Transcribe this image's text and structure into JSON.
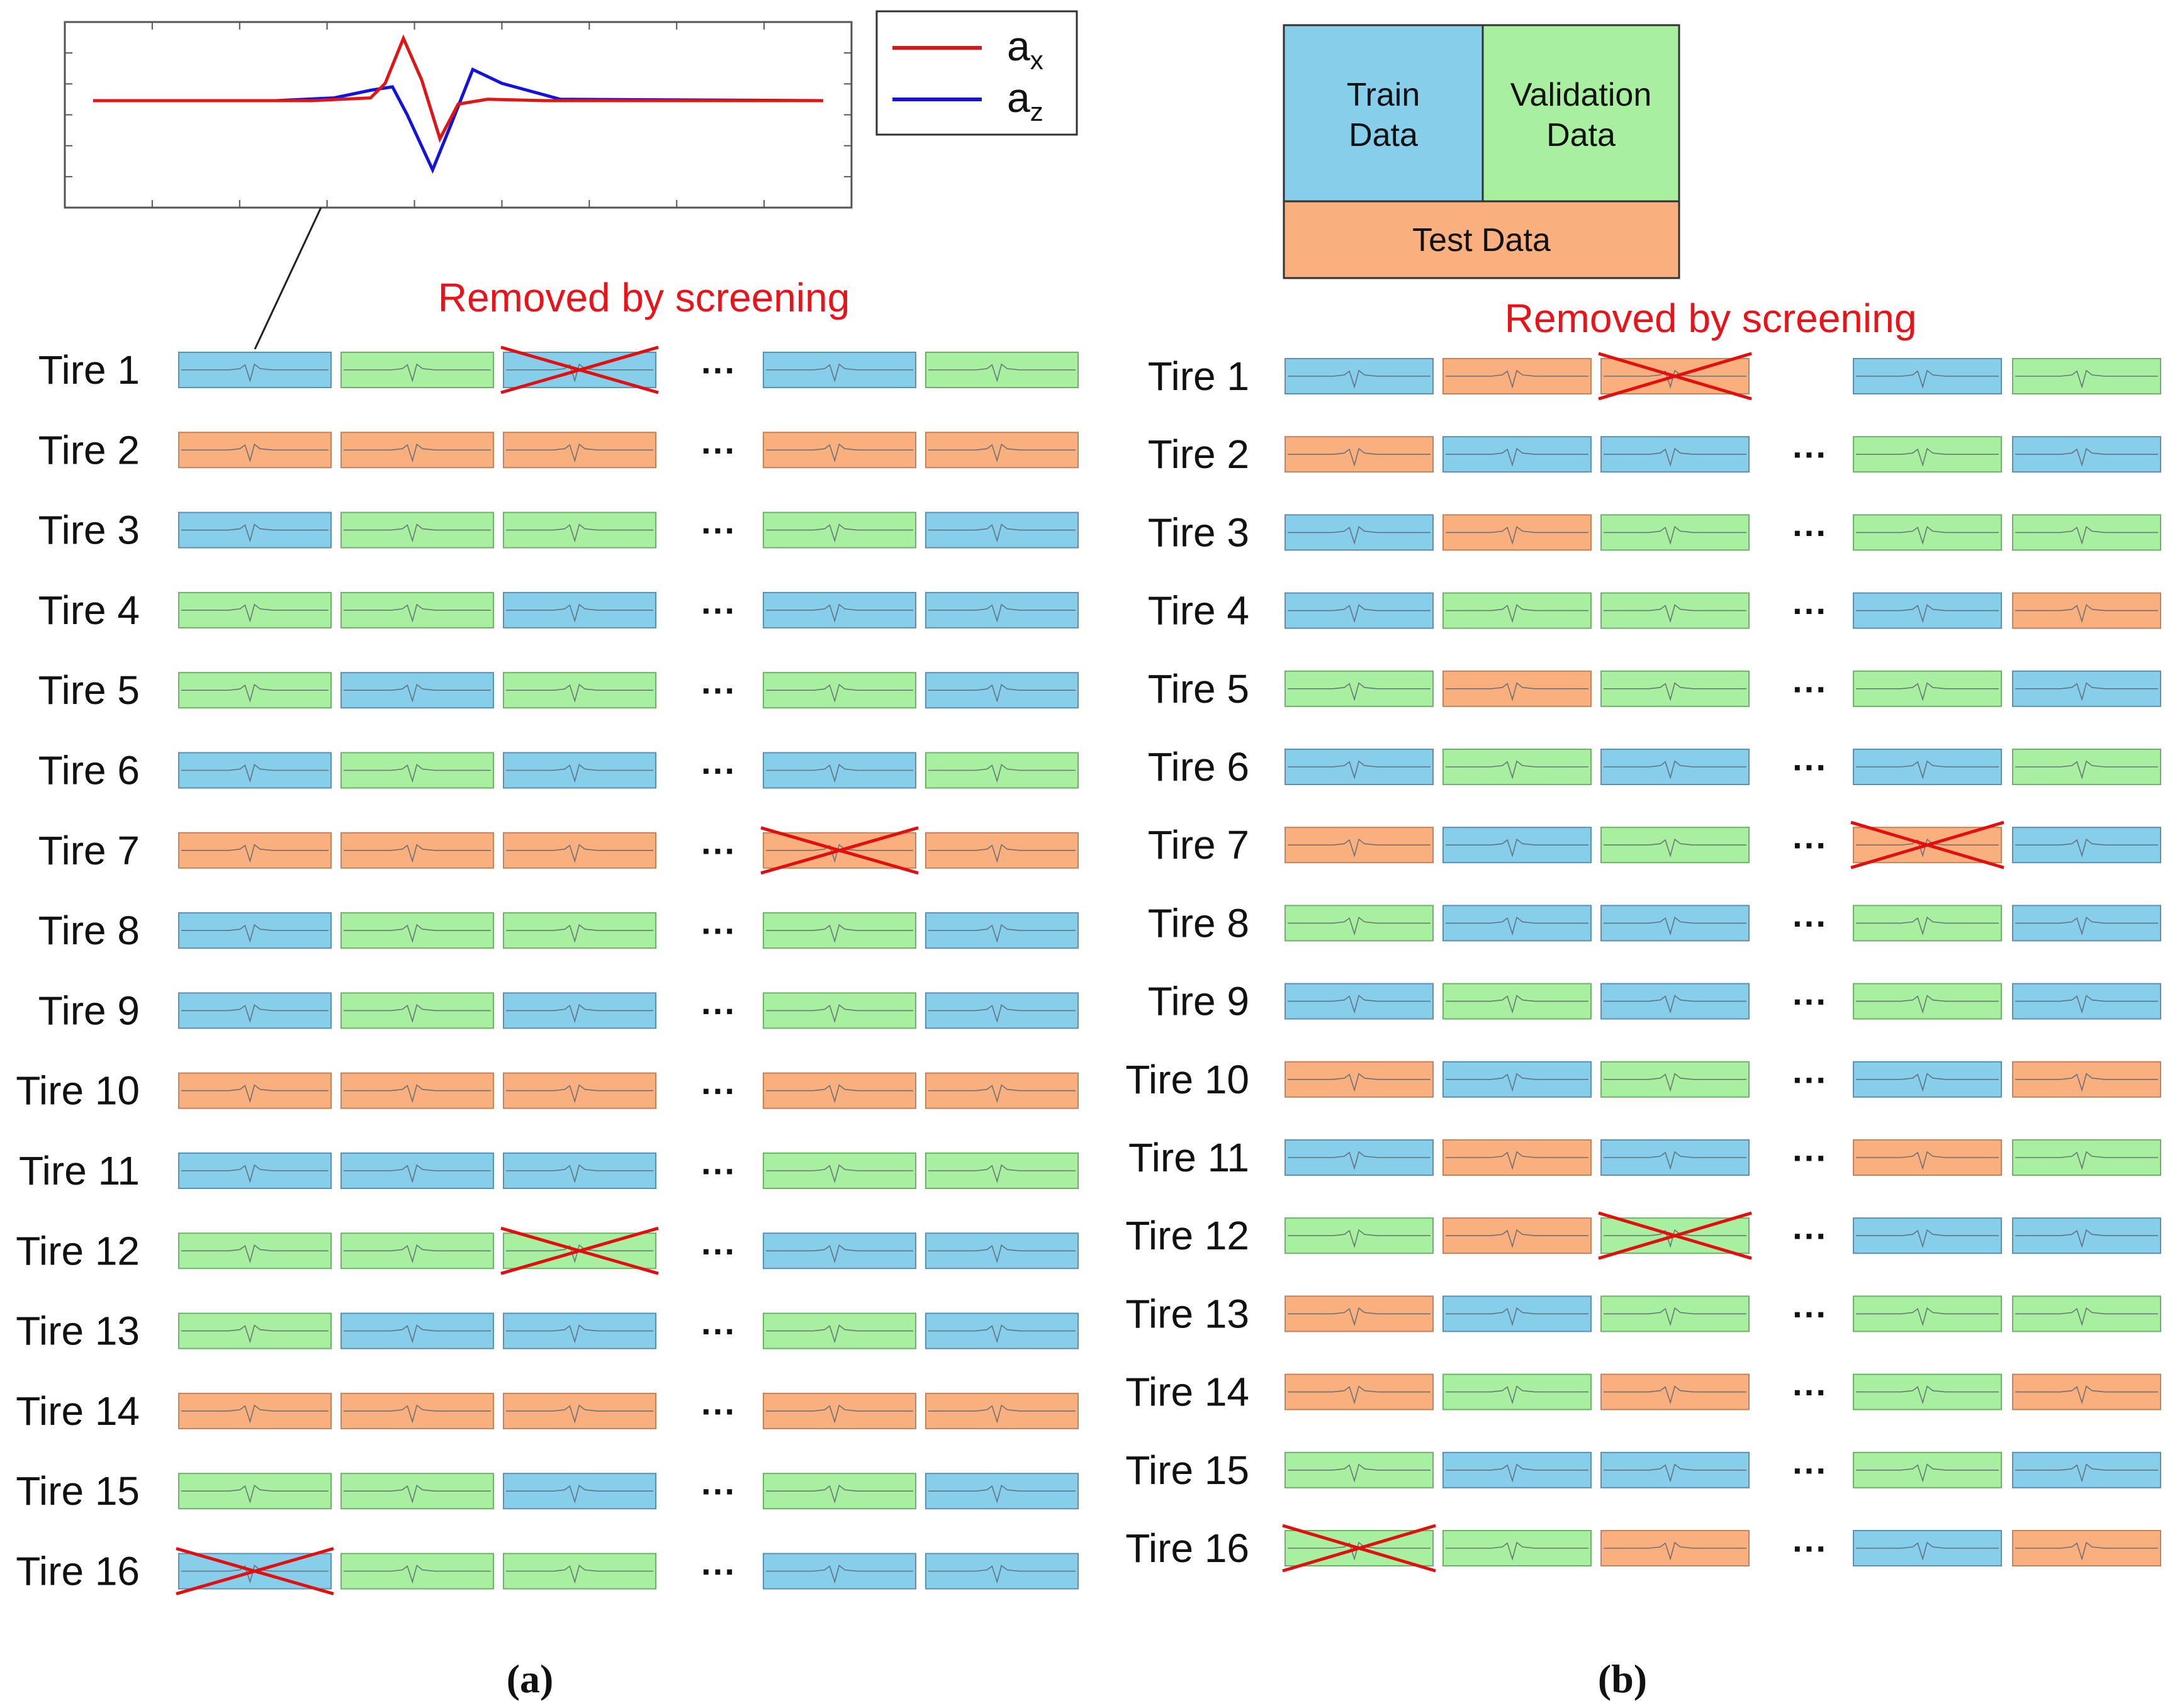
{
  "colors": {
    "train": "#87CEEB",
    "validation": "#A8F0A0",
    "test": "#F9B07E",
    "train_border": "#5C8FB0",
    "validation_border": "#6FB06A",
    "test_border": "#C0845C",
    "trace": "#5A6470",
    "cross": "#E01010",
    "annotation": "#E8141C",
    "ax_line": "#E01515",
    "az_line": "#1414D8"
  },
  "inset_plot": {
    "legend": [
      {
        "symbol": "a",
        "subscript": "x",
        "color_key": "ax_line",
        "series": "ax"
      },
      {
        "symbol": "a",
        "subscript": "z",
        "color_key": "az_line",
        "series": "az"
      }
    ],
    "series": {
      "ax": [
        [
          0,
          0
        ],
        [
          0.3,
          0
        ],
        [
          0.38,
          0.04
        ],
        [
          0.4,
          0.25
        ],
        [
          0.425,
          0.9
        ],
        [
          0.45,
          0.3
        ],
        [
          0.475,
          -0.55
        ],
        [
          0.5,
          -0.05
        ],
        [
          0.54,
          0.02
        ],
        [
          0.62,
          0.0
        ],
        [
          1,
          0
        ]
      ],
      "az": [
        [
          0,
          0
        ],
        [
          0.25,
          0.0
        ],
        [
          0.33,
          0.04
        ],
        [
          0.38,
          0.15
        ],
        [
          0.41,
          0.2
        ],
        [
          0.43,
          -0.2
        ],
        [
          0.465,
          -1.0
        ],
        [
          0.49,
          -0.35
        ],
        [
          0.52,
          0.45
        ],
        [
          0.56,
          0.25
        ],
        [
          0.64,
          0.02
        ],
        [
          1,
          0
        ]
      ]
    }
  },
  "panel_a": {
    "annotation": "Removed by screening",
    "caption": "(a)",
    "ellipsis": "···",
    "rows": [
      {
        "label": "Tire  1",
        "cells": [
          "train",
          "validation",
          "train",
          "train",
          "validation"
        ],
        "removed": [
          2
        ]
      },
      {
        "label": "Tire  2",
        "cells": [
          "test",
          "test",
          "test",
          "test",
          "test"
        ],
        "removed": []
      },
      {
        "label": "Tire  3",
        "cells": [
          "train",
          "validation",
          "validation",
          "validation",
          "train"
        ],
        "removed": []
      },
      {
        "label": "Tire  4",
        "cells": [
          "validation",
          "validation",
          "train",
          "train",
          "train"
        ],
        "removed": []
      },
      {
        "label": "Tire  5",
        "cells": [
          "validation",
          "train",
          "validation",
          "validation",
          "train"
        ],
        "removed": []
      },
      {
        "label": "Tire  6",
        "cells": [
          "train",
          "validation",
          "train",
          "train",
          "validation"
        ],
        "removed": []
      },
      {
        "label": "Tire  7",
        "cells": [
          "test",
          "test",
          "test",
          "test",
          "test"
        ],
        "removed": [
          3
        ]
      },
      {
        "label": "Tire  8",
        "cells": [
          "train",
          "validation",
          "validation",
          "validation",
          "train"
        ],
        "removed": []
      },
      {
        "label": "Tire  9",
        "cells": [
          "train",
          "validation",
          "train",
          "validation",
          "train"
        ],
        "removed": []
      },
      {
        "label": "Tire 10",
        "cells": [
          "test",
          "test",
          "test",
          "test",
          "test"
        ],
        "removed": []
      },
      {
        "label": "Tire 11",
        "cells": [
          "train",
          "train",
          "train",
          "validation",
          "validation"
        ],
        "removed": []
      },
      {
        "label": "Tire 12",
        "cells": [
          "validation",
          "validation",
          "validation",
          "train",
          "train"
        ],
        "removed": [
          2
        ]
      },
      {
        "label": "Tire 13",
        "cells": [
          "validation",
          "train",
          "train",
          "validation",
          "train"
        ],
        "removed": []
      },
      {
        "label": "Tire 14",
        "cells": [
          "test",
          "test",
          "test",
          "test",
          "test"
        ],
        "removed": []
      },
      {
        "label": "Tire 15",
        "cells": [
          "validation",
          "validation",
          "train",
          "validation",
          "train"
        ],
        "removed": []
      },
      {
        "label": "Tire 16",
        "cells": [
          "train",
          "validation",
          "validation",
          "train",
          "train"
        ],
        "removed": [
          0
        ]
      }
    ]
  },
  "panel_b": {
    "legend": {
      "train": "Train\nData",
      "validation": "Validation\nData",
      "test": "Test Data"
    },
    "annotation": "Removed by screening",
    "caption": "(b)",
    "ellipsis": "···",
    "rows": [
      {
        "label": "Tire  1",
        "cells": [
          "train",
          "test",
          "test",
          "train",
          "validation"
        ],
        "removed": [
          2
        ],
        "ellipsis": false
      },
      {
        "label": "Tire  2",
        "cells": [
          "test",
          "train",
          "train",
          "validation",
          "train"
        ],
        "removed": [],
        "ellipsis": true
      },
      {
        "label": "Tire  3",
        "cells": [
          "train",
          "test",
          "validation",
          "validation",
          "validation"
        ],
        "removed": [],
        "ellipsis": true
      },
      {
        "label": "Tire  4",
        "cells": [
          "train",
          "validation",
          "validation",
          "train",
          "test"
        ],
        "removed": [],
        "ellipsis": true
      },
      {
        "label": "Tire  5",
        "cells": [
          "validation",
          "test",
          "validation",
          "validation",
          "train"
        ],
        "removed": [],
        "ellipsis": true
      },
      {
        "label": "Tire  6",
        "cells": [
          "train",
          "validation",
          "train",
          "train",
          "validation"
        ],
        "removed": [],
        "ellipsis": true
      },
      {
        "label": "Tire  7",
        "cells": [
          "test",
          "train",
          "validation",
          "test",
          "train"
        ],
        "removed": [
          3
        ],
        "ellipsis": true
      },
      {
        "label": "Tire  8",
        "cells": [
          "validation",
          "train",
          "train",
          "validation",
          "train"
        ],
        "removed": [],
        "ellipsis": true
      },
      {
        "label": "Tire  9",
        "cells": [
          "train",
          "validation",
          "train",
          "validation",
          "train"
        ],
        "removed": [],
        "ellipsis": true
      },
      {
        "label": "Tire 10",
        "cells": [
          "test",
          "train",
          "validation",
          "train",
          "test"
        ],
        "removed": [],
        "ellipsis": true
      },
      {
        "label": "Tire 11",
        "cells": [
          "train",
          "test",
          "train",
          "test",
          "validation"
        ],
        "removed": [],
        "ellipsis": true
      },
      {
        "label": "Tire 12",
        "cells": [
          "validation",
          "test",
          "validation",
          "train",
          "train"
        ],
        "removed": [
          2
        ],
        "ellipsis": true
      },
      {
        "label": "Tire 13",
        "cells": [
          "test",
          "train",
          "validation",
          "validation",
          "validation"
        ],
        "removed": [],
        "ellipsis": true
      },
      {
        "label": "Tire 14",
        "cells": [
          "test",
          "validation",
          "test",
          "validation",
          "test"
        ],
        "removed": [],
        "ellipsis": true
      },
      {
        "label": "Tire 15",
        "cells": [
          "validation",
          "train",
          "train",
          "validation",
          "train"
        ],
        "removed": [],
        "ellipsis": true
      },
      {
        "label": "Tire 16",
        "cells": [
          "validation",
          "validation",
          "test",
          "train",
          "test"
        ],
        "removed": [
          0
        ],
        "ellipsis": true
      }
    ]
  }
}
